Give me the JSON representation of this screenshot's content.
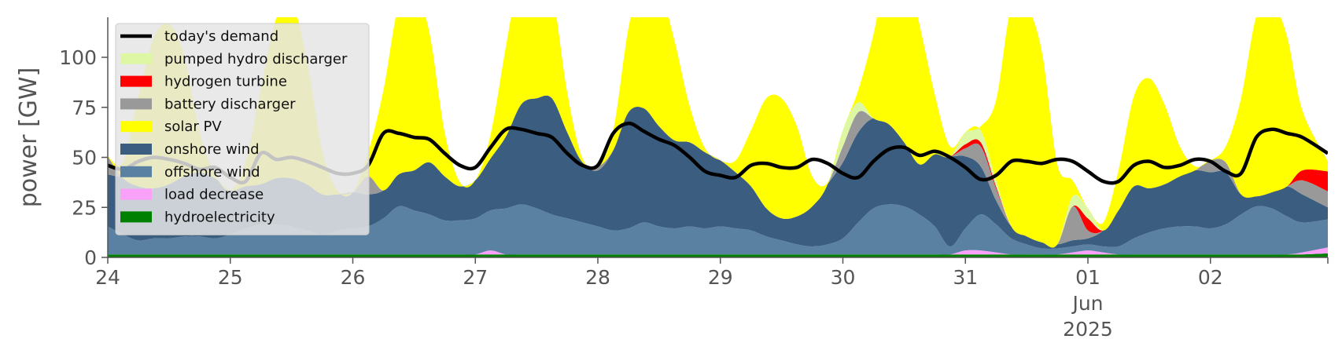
{
  "chart_data": {
    "type": "area",
    "ylabel": "power [GW]",
    "xlabel": "",
    "ylim": [
      0,
      120
    ],
    "xlim": [
      "2025-05-24 00:00",
      "2025-06-02 23:00"
    ],
    "y_ticks": [
      0,
      25,
      50,
      75,
      100
    ],
    "x_ticks": [
      {
        "x": "2025-05-24",
        "label": "24"
      },
      {
        "x": "2025-05-25",
        "label": "25"
      },
      {
        "x": "2025-05-26",
        "label": "26"
      },
      {
        "x": "2025-05-27",
        "label": "27"
      },
      {
        "x": "2025-05-28",
        "label": "28"
      },
      {
        "x": "2025-05-29",
        "label": "29"
      },
      {
        "x": "2025-05-30",
        "label": "30"
      },
      {
        "x": "2025-05-31",
        "label": "31"
      },
      {
        "x": "2025-06-01",
        "label": "01"
      },
      {
        "x": "2025-06-02",
        "label": "02"
      }
    ],
    "x_sublabels": [
      "Jun",
      "2025"
    ],
    "grid": false,
    "legend_placement": "upper-left",
    "x": [
      "2025-05-24 00:00",
      "2025-05-24 03:00",
      "2025-05-24 06:00",
      "2025-05-24 09:00",
      "2025-05-24 12:00",
      "2025-05-24 15:00",
      "2025-05-24 18:00",
      "2025-05-24 21:00",
      "2025-05-25 00:00",
      "2025-05-25 03:00",
      "2025-05-25 06:00",
      "2025-05-25 09:00",
      "2025-05-25 12:00",
      "2025-05-25 15:00",
      "2025-05-25 18:00",
      "2025-05-25 21:00",
      "2025-05-26 00:00",
      "2025-05-26 03:00",
      "2025-05-26 06:00",
      "2025-05-26 09:00",
      "2025-05-26 12:00",
      "2025-05-26 15:00",
      "2025-05-26 18:00",
      "2025-05-26 21:00",
      "2025-05-27 00:00",
      "2025-05-27 03:00",
      "2025-05-27 06:00",
      "2025-05-27 09:00",
      "2025-05-27 12:00",
      "2025-05-27 15:00",
      "2025-05-27 18:00",
      "2025-05-27 21:00",
      "2025-05-28 00:00",
      "2025-05-28 03:00",
      "2025-05-28 06:00",
      "2025-05-28 09:00",
      "2025-05-28 12:00",
      "2025-05-28 15:00",
      "2025-05-28 18:00",
      "2025-05-28 21:00",
      "2025-05-29 00:00",
      "2025-05-29 03:00",
      "2025-05-29 06:00",
      "2025-05-29 09:00",
      "2025-05-29 12:00",
      "2025-05-29 15:00",
      "2025-05-29 18:00",
      "2025-05-29 21:00",
      "2025-05-30 00:00",
      "2025-05-30 03:00",
      "2025-05-30 06:00",
      "2025-05-30 09:00",
      "2025-05-30 12:00",
      "2025-05-30 15:00",
      "2025-05-30 18:00",
      "2025-05-30 21:00",
      "2025-05-31 00:00",
      "2025-05-31 03:00",
      "2025-05-31 06:00",
      "2025-05-31 09:00",
      "2025-05-31 12:00",
      "2025-05-31 15:00",
      "2025-05-31 18:00",
      "2025-05-31 21:00",
      "2025-06-01 00:00",
      "2025-06-01 03:00",
      "2025-06-01 06:00",
      "2025-06-01 09:00",
      "2025-06-01 12:00",
      "2025-06-01 15:00",
      "2025-06-01 18:00",
      "2025-06-01 21:00",
      "2025-06-02 00:00",
      "2025-06-02 03:00",
      "2025-06-02 06:00",
      "2025-06-02 09:00",
      "2025-06-02 12:00",
      "2025-06-02 15:00",
      "2025-06-02 18:00",
      "2025-06-02 23:00"
    ],
    "series": [
      {
        "name": "hydroelectricity",
        "color": "#008000",
        "values": [
          1.5,
          1.5,
          1.5,
          1.5,
          1.5,
          1.5,
          1.5,
          1.5,
          1.5,
          1.5,
          1.5,
          1.5,
          1.5,
          1.5,
          1.5,
          1.5,
          1.5,
          1.5,
          1.5,
          1.5,
          1.5,
          1.5,
          1.5,
          1.5,
          1.5,
          1.5,
          1.5,
          1.5,
          1.5,
          1.5,
          1.5,
          1.5,
          1.5,
          1.5,
          1.5,
          1.5,
          1.5,
          1.5,
          1.5,
          1.5,
          1.5,
          1.5,
          1.5,
          1.5,
          1.5,
          1.5,
          1.5,
          1.5,
          1.5,
          1.5,
          1.5,
          1.5,
          1.5,
          1.5,
          1.5,
          1.5,
          1.5,
          1.5,
          1.5,
          1.5,
          1.5,
          1.5,
          1.5,
          1.5,
          1.5,
          1.5,
          1.5,
          1.5,
          1.5,
          1.5,
          1.5,
          1.5,
          1.5,
          1.5,
          1.5,
          1.5,
          1.5,
          1.5,
          1.5,
          2.0
        ]
      },
      {
        "name": "load decrease",
        "color": "#f9a0f9",
        "values": [
          0,
          0,
          0,
          0,
          0,
          0,
          0,
          0,
          0,
          0,
          0,
          0,
          0,
          0,
          0,
          0,
          0,
          0,
          0,
          0,
          0,
          0,
          0,
          0,
          0,
          2,
          0,
          0,
          0,
          0,
          0,
          0,
          0,
          0,
          0,
          0,
          0,
          0,
          0,
          0,
          0,
          0,
          0,
          0,
          0,
          0,
          0,
          0,
          0,
          0,
          0,
          0,
          0,
          0,
          0,
          0,
          2,
          2,
          1,
          0,
          0,
          0,
          0,
          1,
          2,
          1,
          0,
          0,
          0,
          0,
          0,
          0,
          0,
          0,
          0,
          0,
          0,
          0,
          1,
          3
        ]
      },
      {
        "name": "offshore wind",
        "color": "#5b81a2",
        "values": [
          14,
          10,
          7,
          8,
          8,
          9,
          9,
          8,
          10,
          13,
          15,
          15,
          14,
          12,
          10,
          12,
          13,
          14,
          18,
          24,
          22,
          20,
          17,
          17,
          18,
          20,
          23,
          25,
          23,
          20,
          18,
          16,
          14,
          12,
          13,
          16,
          14,
          13,
          14,
          13,
          14,
          13,
          12,
          9,
          7,
          5,
          4,
          5,
          8,
          16,
          23,
          25,
          24,
          20,
          14,
          4,
          11,
          18,
          14,
          8,
          5,
          3,
          3,
          3,
          3,
          3,
          4,
          8,
          11,
          13,
          14,
          14,
          13,
          15,
          20,
          24,
          23,
          19,
          15,
          14
        ]
      },
      {
        "name": "onshore wind",
        "color": "#3b5d80",
        "values": [
          26,
          28,
          27,
          25,
          27,
          30,
          32,
          30,
          22,
          21,
          20,
          23,
          24,
          23,
          20,
          18,
          18,
          16,
          14,
          16,
          20,
          26,
          22,
          17,
          19,
          26,
          36,
          50,
          55,
          58,
          43,
          30,
          28,
          40,
          58,
          57,
          50,
          44,
          42,
          38,
          33,
          28,
          22,
          14,
          11,
          14,
          20,
          30,
          38,
          45,
          45,
          40,
          32,
          25,
          36,
          45,
          36,
          24,
          12,
          6,
          4,
          3,
          2,
          3,
          3,
          8,
          18,
          26,
          22,
          22,
          25,
          28,
          28,
          26,
          10,
          5,
          8,
          15,
          14,
          6
        ]
      },
      {
        "name": "battery discharger",
        "color": "#999999",
        "values": [
          9,
          0,
          0,
          0,
          0,
          0,
          0,
          0,
          0,
          0,
          0,
          0,
          0,
          0,
          0,
          0,
          0,
          9,
          0,
          0,
          0,
          0,
          0,
          0,
          0,
          0,
          0,
          0,
          0,
          0,
          0,
          0,
          2,
          0,
          0,
          0,
          0,
          0,
          0,
          0,
          0,
          0,
          0,
          0,
          0,
          0,
          0,
          0,
          8,
          10,
          0,
          0,
          0,
          0,
          0,
          0,
          4,
          10,
          6,
          0,
          0,
          0,
          0,
          17,
          4,
          0,
          0,
          0,
          0,
          0,
          0,
          0,
          6,
          5,
          0,
          0,
          0,
          0,
          7,
          8
        ]
      },
      {
        "name": "hydrogen turbine",
        "color": "#ff0000",
        "values": [
          0,
          0,
          0,
          0,
          0,
          0,
          0,
          0,
          0,
          0,
          0,
          0,
          0,
          0,
          0,
          0,
          0,
          0,
          0,
          0,
          0,
          0,
          0,
          0,
          0,
          0,
          0,
          0,
          0,
          0,
          0,
          0,
          0,
          0,
          0,
          0,
          0,
          0,
          0,
          0,
          0,
          0,
          0,
          0,
          0,
          0,
          0,
          0,
          0,
          0,
          0,
          0,
          0,
          0,
          0,
          0,
          2,
          2,
          1,
          0,
          0,
          0,
          0,
          0,
          6,
          0,
          0,
          0,
          0,
          0,
          0,
          0,
          0,
          0,
          0,
          0,
          0,
          0,
          5,
          10
        ]
      },
      {
        "name": "pumped hydro discharger",
        "color": "#ddf7a4",
        "values": [
          0,
          0,
          0,
          0,
          0,
          0,
          0,
          0,
          0,
          0,
          0,
          0,
          0,
          0,
          0,
          0,
          0,
          0,
          0,
          0,
          0,
          0,
          0,
          0,
          0,
          0,
          0,
          0,
          0,
          0,
          0,
          0,
          0,
          0,
          0,
          0,
          0,
          0,
          0,
          0,
          0,
          0,
          0,
          0,
          0,
          0,
          0,
          0,
          8,
          5,
          0,
          0,
          0,
          0,
          0,
          0,
          6,
          6,
          3,
          0,
          0,
          0,
          0,
          5,
          5,
          0,
          0,
          0,
          0,
          0,
          0,
          0,
          0,
          0,
          0,
          0,
          0,
          0,
          0,
          0
        ]
      },
      {
        "name": "solar PV",
        "color": "#ffff00",
        "values": [
          0,
          8,
          45,
          75,
          80,
          60,
          20,
          2,
          0,
          12,
          48,
          80,
          88,
          62,
          22,
          2,
          0,
          12,
          50,
          85,
          90,
          65,
          22,
          2,
          0,
          12,
          45,
          70,
          78,
          55,
          20,
          2,
          0,
          10,
          42,
          70,
          70,
          50,
          18,
          2,
          0,
          6,
          28,
          55,
          60,
          45,
          15,
          1,
          0,
          6,
          42,
          82,
          90,
          70,
          30,
          5,
          0,
          2,
          40,
          110,
          115,
          95,
          40,
          8,
          0,
          4,
          20,
          45,
          55,
          40,
          15,
          2,
          0,
          8,
          48,
          90,
          95,
          75,
          30,
          5
        ]
      },
      {
        "name": "today's demand",
        "color": "#000000",
        "type": "line",
        "values": [
          46,
          44,
          48,
          50,
          49,
          47,
          44,
          45,
          40,
          38,
          52,
          49,
          50,
          48,
          45,
          42,
          42,
          46,
          62,
          62,
          60,
          59,
          52,
          46,
          45,
          55,
          64,
          64,
          62,
          60,
          52,
          46,
          46,
          62,
          67,
          63,
          59,
          56,
          50,
          43,
          41,
          40,
          46,
          47,
          45,
          45,
          49,
          47,
          42,
          40,
          48,
          54,
          55,
          51,
          53,
          50,
          45,
          39,
          41,
          48,
          48,
          47,
          49,
          48,
          43,
          38,
          38,
          46,
          48,
          45,
          46,
          49,
          48,
          43,
          42,
          60,
          64,
          62,
          60,
          52
        ]
      }
    ]
  }
}
